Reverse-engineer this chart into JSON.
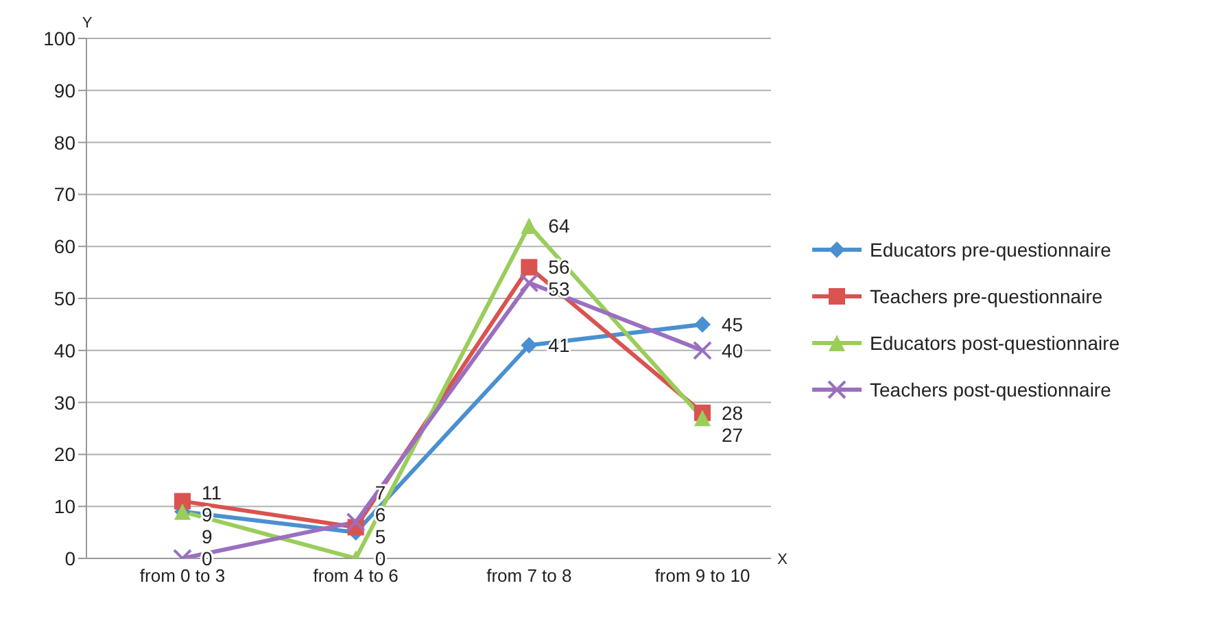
{
  "chart_data": {
    "type": "line",
    "xlabel": "X",
    "ylabel": "Y",
    "categories": [
      "from 0 to 3",
      "from 4 to 6",
      "from 7 to 8",
      "from 9 to 10"
    ],
    "series": [
      {
        "name": "Educators pre-questionnaire",
        "color": "#4a90d0",
        "marker": "diamond",
        "values": [
          9,
          5,
          41,
          45
        ]
      },
      {
        "name": "Teachers pre-questionnaire",
        "color": "#d9534f",
        "marker": "square",
        "values": [
          11,
          6,
          56,
          28
        ]
      },
      {
        "name": "Educators post-questionnaire",
        "color": "#9acd5a",
        "marker": "triangle",
        "values": [
          9,
          0,
          64,
          27
        ]
      },
      {
        "name": "Teachers post-questionnaire",
        "color": "#9b6fc0",
        "marker": "cross",
        "values": [
          0,
          7,
          53,
          40
        ]
      }
    ],
    "ylim": [
      0,
      100
    ],
    "yticks": [
      0,
      10,
      20,
      30,
      40,
      50,
      60,
      70,
      80,
      90,
      100
    ],
    "grid": "y",
    "legend": "right",
    "data_labels": true
  }
}
